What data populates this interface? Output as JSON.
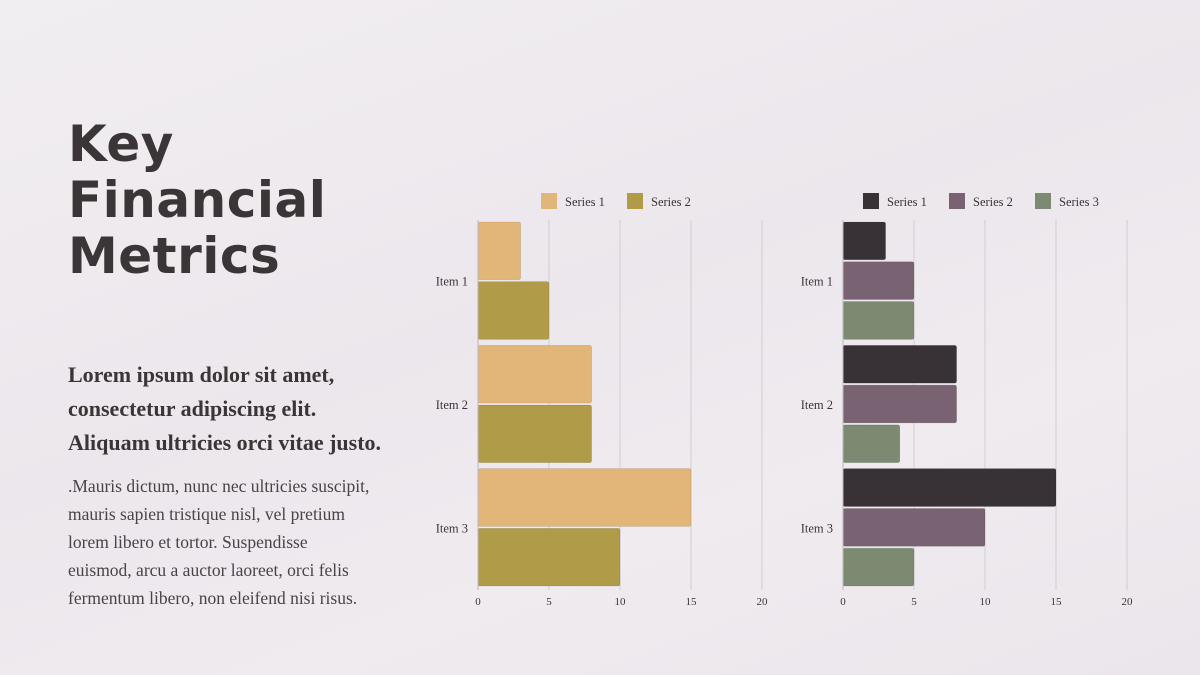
{
  "slide": {
    "title_lines": [
      "Key",
      "Financial",
      "Metrics"
    ],
    "lead_lines": [
      "Lorem ipsum dolor sit amet,",
      "consectetur adipiscing elit.",
      "Aliquam ultricies orci vitae justo."
    ],
    "body_lines": [
      ".Mauris dictum, nunc nec ultricies suscipit,",
      "mauris sapien tristique nisl, vel pretium",
      "lorem libero et tortor. Suspendisse",
      "euismod, arcu a auctor laoreet, orci felis",
      "fermentum libero, non eleifend nisi risus."
    ]
  },
  "chart_data": [
    {
      "type": "bar",
      "orientation": "horizontal",
      "categories": [
        "Item 1",
        "Item 2",
        "Item 3"
      ],
      "series": [
        {
          "name": "Series 1",
          "color": "#e2b578",
          "values": [
            3,
            8,
            15
          ]
        },
        {
          "name": "Series 2",
          "color": "#b09c48",
          "values": [
            5,
            8,
            10
          ]
        }
      ],
      "xlim": [
        0,
        20
      ],
      "xticks": [
        "0",
        "5",
        "10",
        "15",
        "20"
      ],
      "legend": "top",
      "grid": true
    },
    {
      "type": "bar",
      "orientation": "horizontal",
      "categories": [
        "Item 1",
        "Item 2",
        "Item 3"
      ],
      "series": [
        {
          "name": "Series 1",
          "color": "#383236",
          "values": [
            3,
            8,
            15
          ]
        },
        {
          "name": "Series 2",
          "color": "#796373",
          "values": [
            5,
            8,
            10
          ]
        },
        {
          "name": "Series 3",
          "color": "#7b8a70",
          "values": [
            5,
            4,
            5
          ]
        }
      ],
      "xlim": [
        0,
        20
      ],
      "xticks": [
        "0",
        "5",
        "10",
        "15",
        "20"
      ],
      "legend": "top",
      "grid": true
    }
  ]
}
